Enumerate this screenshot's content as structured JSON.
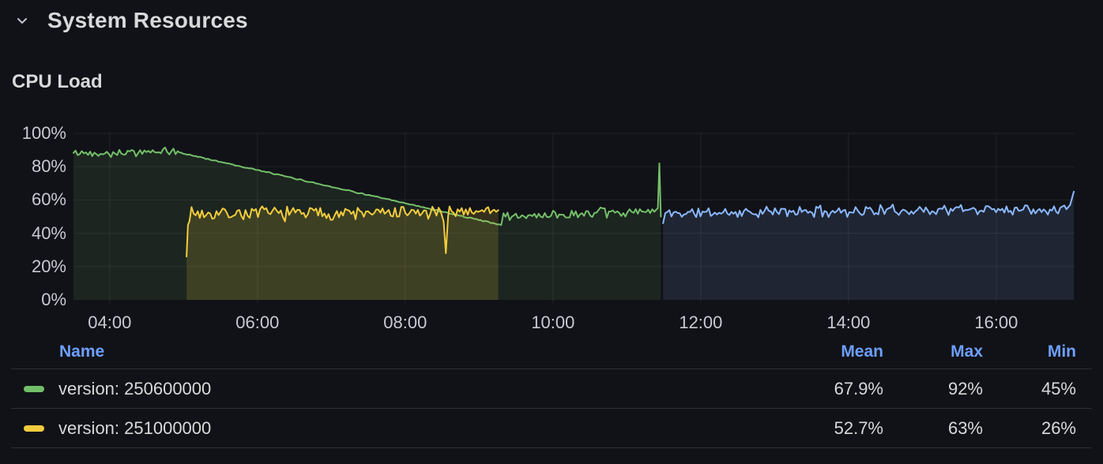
{
  "row_header": {
    "title": "System Resources",
    "collapse_icon": "chevron-down-icon"
  },
  "panel": {
    "title": "CPU Load"
  },
  "theme": {
    "background": "#111217",
    "text_primary": "#D8D9DA",
    "text_secondary": "#C9CAD1",
    "link_blue": "#6E9FFF",
    "grid": "rgba(255,255,255,0.07)",
    "divider": "#2e2f34",
    "series_green": "#73BF69",
    "series_yellow": "#F2CC3D",
    "series_blue": "#8AB8FF"
  },
  "chart_data": {
    "type": "line",
    "title": "CPU Load",
    "xlabel": "",
    "ylabel": "",
    "grid": true,
    "legend_position": "bottom-table",
    "xlim_hours": [
      3.51,
      17.06
    ],
    "ylim": [
      0,
      100
    ],
    "y_unit": "%",
    "x_ticks": [
      {
        "t": 4,
        "label": "04:00"
      },
      {
        "t": 6,
        "label": "06:00"
      },
      {
        "t": 8,
        "label": "08:00"
      },
      {
        "t": 10,
        "label": "10:00"
      },
      {
        "t": 12,
        "label": "12:00"
      },
      {
        "t": 14,
        "label": "14:00"
      },
      {
        "t": 16,
        "label": "16:00"
      }
    ],
    "y_ticks": [
      {
        "v": 0,
        "label": "0%"
      },
      {
        "v": 20,
        "label": "20%"
      },
      {
        "v": 40,
        "label": "40%"
      },
      {
        "v": 60,
        "label": "60%"
      },
      {
        "v": 80,
        "label": "80%"
      },
      {
        "v": 100,
        "label": "100%"
      }
    ],
    "series": [
      {
        "name": "version: 250600000",
        "color": "#73BF69",
        "stats": {
          "mean": 67.9,
          "max": 92,
          "min": 45
        },
        "seed": 42,
        "fill_opacity": 0.11,
        "segments": [
          {
            "type": "noisy",
            "t0": 3.51,
            "t1": 4.92,
            "y0": 88,
            "y1": 89,
            "amp": 2.4
          },
          {
            "type": "noisy",
            "t0": 4.94,
            "t1": 9.3,
            "y0": 88.5,
            "y1": 45,
            "amp": 0.35
          },
          {
            "type": "noisy",
            "t0": 9.33,
            "t1": 11.4,
            "y0": 50,
            "y1": 53,
            "amp": 3.1
          },
          {
            "type": "points",
            "pts": [
              [
                11.42,
                55
              ],
              [
                11.44,
                82
              ],
              [
                11.46,
                50
              ]
            ]
          }
        ]
      },
      {
        "name": "version: 251000000",
        "color": "#F2CC3D",
        "stats": {
          "mean": 52.7,
          "max": 63,
          "min": 26
        },
        "seed": 7,
        "fill_opacity": 0.16,
        "segments": [
          {
            "type": "points",
            "pts": [
              [
                5.04,
                26
              ],
              [
                5.06,
                45
              ]
            ]
          },
          {
            "type": "noisy",
            "t0": 5.08,
            "t1": 8.48,
            "y0": 52,
            "y1": 52,
            "amp": 4.2
          },
          {
            "type": "points",
            "pts": [
              [
                8.52,
                47
              ],
              [
                8.55,
                28
              ],
              [
                8.58,
                50
              ]
            ]
          },
          {
            "type": "noisy",
            "t0": 8.6,
            "t1": 9.26,
            "y0": 53,
            "y1": 54,
            "amp": 3.0
          }
        ]
      },
      {
        "name": "",
        "color": "#8AB8FF",
        "seed": 11,
        "fill_opacity": 0.12,
        "segments": [
          {
            "type": "points",
            "pts": [
              [
                11.49,
                46
              ]
            ]
          },
          {
            "type": "noisy",
            "t0": 11.52,
            "t1": 16.95,
            "y0": 52,
            "y1": 55,
            "amp": 3.3
          },
          {
            "type": "points",
            "pts": [
              [
                17.0,
                57
              ],
              [
                17.05,
                65
              ]
            ]
          }
        ]
      }
    ]
  },
  "legend": {
    "header": {
      "name": "Name",
      "mean": "Mean",
      "max": "Max",
      "min": "Min"
    },
    "rows": [
      {
        "name": "version: 250600000",
        "color": "#73BF69",
        "mean": "67.9%",
        "max": "92%",
        "min": "45%"
      },
      {
        "name": "version: 251000000",
        "color": "#F2CC3D",
        "mean": "52.7%",
        "max": "63%",
        "min": "26%"
      }
    ]
  }
}
